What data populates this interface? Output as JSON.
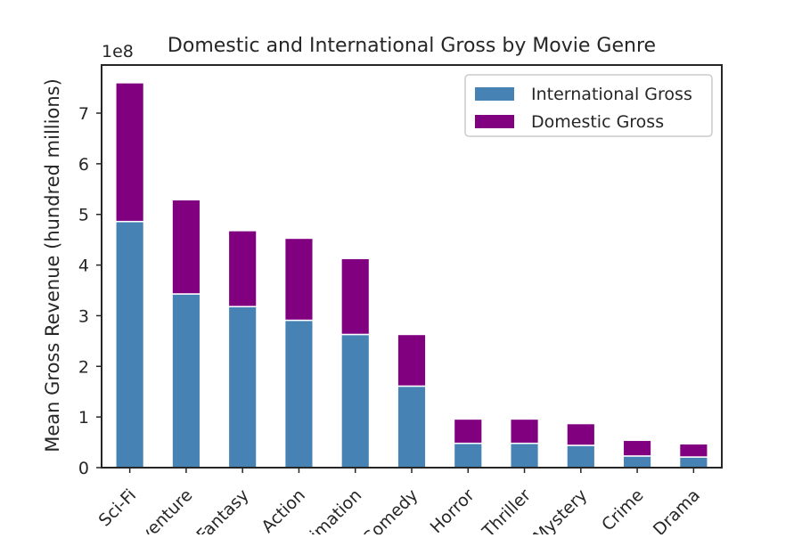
{
  "chart_data": {
    "type": "bar",
    "stacked": true,
    "title": "Domestic and International Gross by Movie Genre",
    "xlabel": "",
    "ylabel": "Mean Gross Revenue (hundred millions)",
    "y_offset_label": "1e8",
    "ylim": [
      0,
      7.95
    ],
    "yticks": [
      "0",
      "1",
      "2",
      "3",
      "4",
      "5",
      "6",
      "7"
    ],
    "categories": [
      "Sci-Fi",
      "Adventure",
      "Fantasy",
      "Action",
      "Animation",
      "Comedy",
      "Horror",
      "Thriller",
      "Mystery",
      "Crime",
      "Drama"
    ],
    "series": [
      {
        "name": "International Gross",
        "color": "#4682b4",
        "values": [
          4.86,
          3.43,
          3.18,
          2.91,
          2.63,
          1.61,
          0.48,
          0.48,
          0.44,
          0.23,
          0.21
        ]
      },
      {
        "name": "Domestic Gross",
        "color": "#800080",
        "values": [
          2.74,
          1.86,
          1.5,
          1.62,
          1.5,
          1.02,
          0.48,
          0.48,
          0.43,
          0.31,
          0.26
        ]
      }
    ],
    "legend_position": "top-right",
    "grid": false
  }
}
